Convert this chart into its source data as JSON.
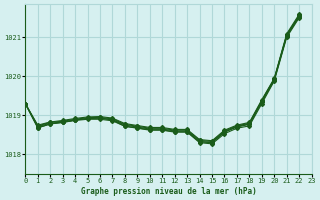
{
  "title": "Graphe pression niveau de la mer (hPa)",
  "bg_color": "#d6f0f0",
  "grid_color": "#b0d8d8",
  "line_color": "#1a5c1a",
  "xlim": [
    0,
    23
  ],
  "ylim": [
    1017.5,
    1021.85
  ],
  "yticks": [
    1018,
    1019,
    1020,
    1021
  ],
  "xticks": [
    0,
    1,
    2,
    3,
    4,
    5,
    6,
    7,
    8,
    9,
    10,
    11,
    12,
    13,
    14,
    15,
    16,
    17,
    18,
    19,
    20,
    21,
    22,
    23
  ],
  "lines": [
    [
      1019.3,
      1018.68,
      1018.78,
      1018.82,
      1018.87,
      1018.9,
      1018.9,
      1018.86,
      1018.72,
      1018.67,
      1018.62,
      1018.62,
      1018.57,
      1018.57,
      1018.3,
      1018.27,
      1018.53,
      1018.67,
      1018.73,
      1019.3,
      1019.88,
      1021.0,
      1021.5
    ],
    [
      1019.3,
      1018.71,
      1018.8,
      1018.83,
      1018.88,
      1018.92,
      1018.93,
      1018.89,
      1018.75,
      1018.7,
      1018.65,
      1018.65,
      1018.6,
      1018.6,
      1018.33,
      1018.31,
      1018.57,
      1018.7,
      1018.77,
      1019.34,
      1019.9,
      1021.03,
      1021.53
    ],
    [
      1019.3,
      1018.73,
      1018.82,
      1018.85,
      1018.9,
      1018.94,
      1018.95,
      1018.91,
      1018.77,
      1018.72,
      1018.67,
      1018.67,
      1018.62,
      1018.62,
      1018.36,
      1018.33,
      1018.6,
      1018.73,
      1018.8,
      1019.37,
      1019.93,
      1021.06,
      1021.56
    ],
    [
      1019.3,
      1018.75,
      1018.83,
      1018.87,
      1018.92,
      1018.96,
      1018.97,
      1018.93,
      1018.79,
      1018.74,
      1018.69,
      1018.69,
      1018.64,
      1018.64,
      1018.38,
      1018.35,
      1018.62,
      1018.75,
      1018.82,
      1019.4,
      1019.95,
      1021.09,
      1021.59
    ],
    [
      1019.3,
      1018.68,
      1018.78,
      1018.82,
      1018.88,
      1018.92,
      1018.93,
      1018.88,
      1018.72,
      1018.68,
      1018.63,
      1018.63,
      1018.58,
      1018.58,
      1018.32,
      1018.3,
      1018.57,
      1018.72,
      1018.78,
      1019.38,
      1019.93,
      1021.05,
      1021.55
    ]
  ]
}
